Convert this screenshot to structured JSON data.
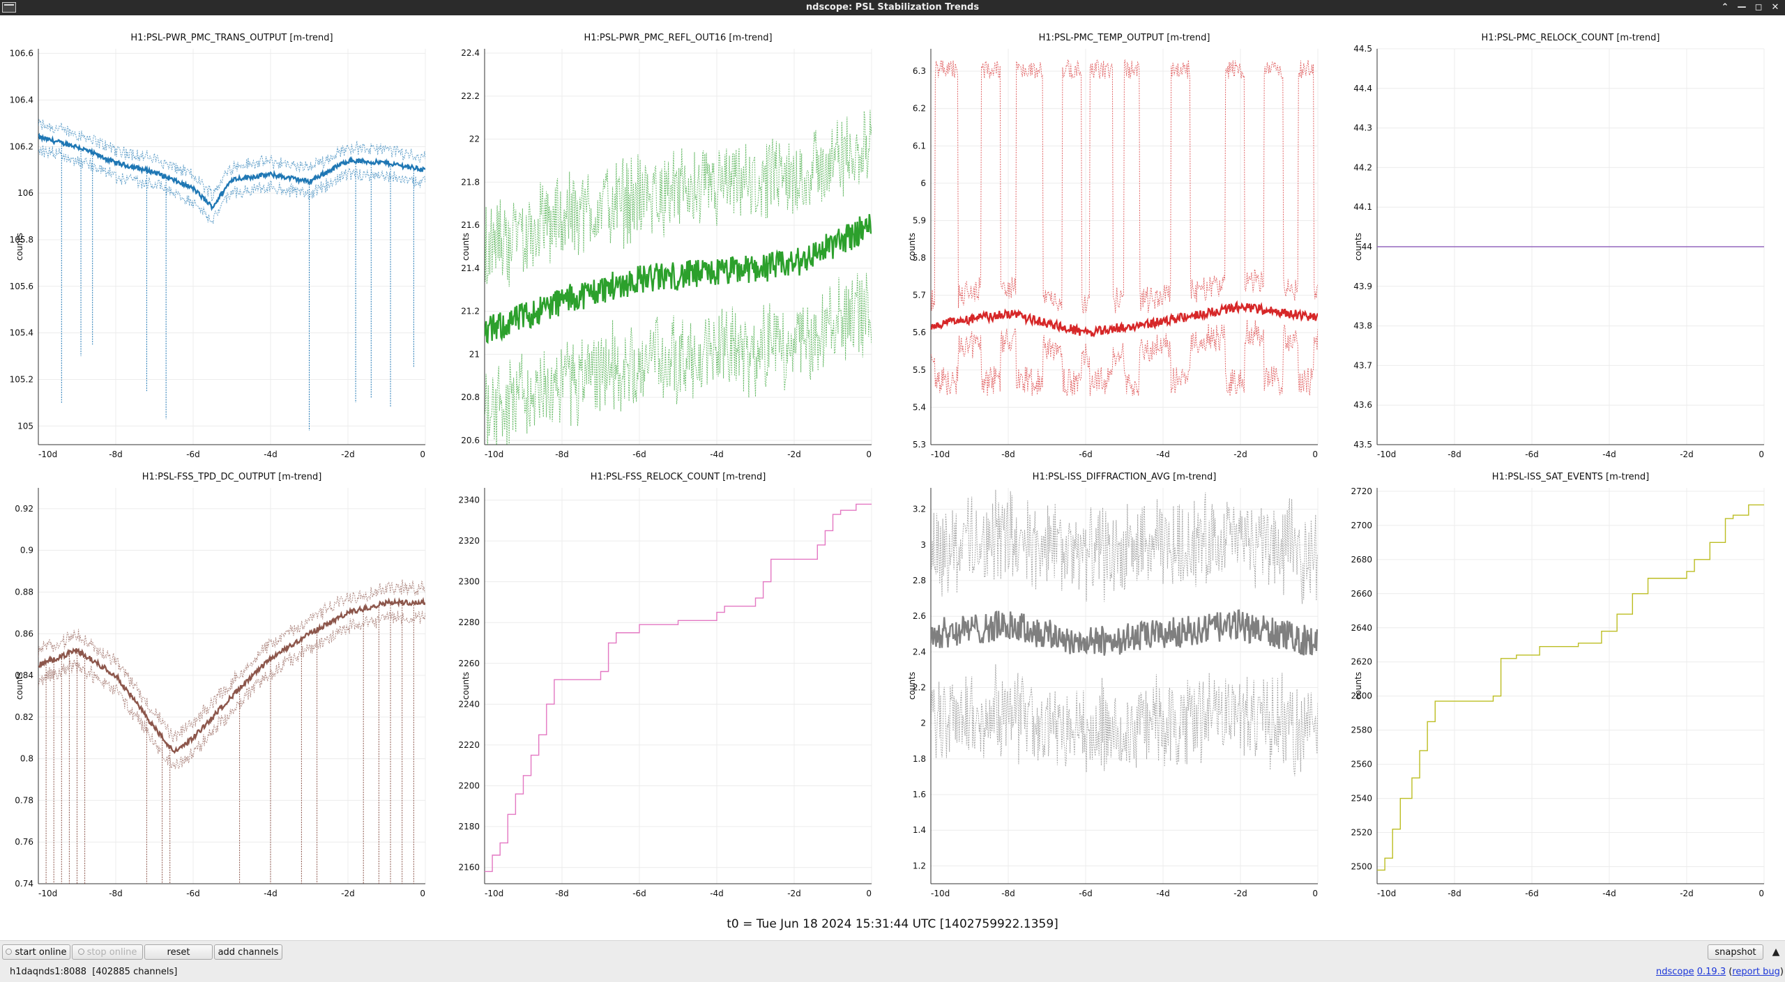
{
  "window": {
    "title": "ndscope: PSL Stabilization Trends"
  },
  "t0_label": "t0 = Tue Jun 18 2024 15:31:44 UTC [1402759922.1359]",
  "buttons": {
    "start_online": "start online",
    "stop_online": "stop online",
    "reset": "reset",
    "add_channels": "add channels",
    "snapshot": "snapshot"
  },
  "status": {
    "server": "h1daqnds1:8088",
    "channels": "[402885 channels]",
    "app_name": "ndscope",
    "version": "0.19.3",
    "report_bug": "report bug"
  },
  "colors": {
    "blue": "#1f77b4",
    "green": "#2ca02c",
    "red": "#d62728",
    "purple": "#9467bd",
    "brown": "#8c564b",
    "pink": "#e377c2",
    "gray": "#7f7f7f",
    "olive": "#bcbd22"
  },
  "chart_data": [
    {
      "type": "line",
      "title": "H1:PSL-PWR_PMC_TRANS_OUTPUT [m-trend]",
      "ylabel": "counts",
      "color": "blue",
      "xlim": [
        -10,
        0
      ],
      "x_ticks": [
        "-10d",
        "-8d",
        "-6d",
        "-4d",
        "-2d",
        "0"
      ],
      "ylim": [
        104.92,
        106.62
      ],
      "y_ticks": [
        105,
        105.2,
        105.4,
        105.6,
        105.8,
        106,
        106.2,
        106.4,
        106.6
      ],
      "x": [
        -10,
        -9,
        -8,
        -7,
        -6,
        -5.5,
        -5,
        -4,
        -3,
        -2,
        -1,
        0
      ],
      "mean": [
        106.24,
        106.2,
        106.13,
        106.09,
        106.02,
        105.94,
        106.06,
        106.08,
        106.05,
        106.14,
        106.13,
        106.1
      ],
      "band": 0.08,
      "dips": [
        [
          -9.4,
          105.1
        ],
        [
          -8.9,
          105.3
        ],
        [
          -8.6,
          105.35
        ],
        [
          -7.2,
          105.15
        ],
        [
          -6.7,
          105.03
        ],
        [
          -3,
          104.98
        ],
        [
          -1.8,
          105.1
        ],
        [
          -1.4,
          105.12
        ],
        [
          -0.9,
          105.08
        ],
        [
          -0.3,
          105.25
        ]
      ]
    },
    {
      "type": "line",
      "title": "H1:PSL-PWR_PMC_REFL_OUT16 [m-trend]",
      "ylabel": "counts",
      "color": "green",
      "xlim": [
        -10,
        0
      ],
      "x_ticks": [
        "-10d",
        "-8d",
        "-6d",
        "-4d",
        "-2d",
        "0"
      ],
      "ylim": [
        20.58,
        22.42
      ],
      "y_ticks": [
        20.6,
        20.8,
        21,
        21.2,
        21.4,
        21.6,
        21.8,
        22,
        22.2,
        22.4
      ],
      "x": [
        -10,
        -8,
        -6,
        -4,
        -2,
        0
      ],
      "mean": [
        21.1,
        21.25,
        21.35,
        21.38,
        21.42,
        21.6
      ],
      "band": 0.55,
      "dips": []
    },
    {
      "type": "line",
      "title": "H1:PSL-PMC_TEMP_OUTPUT [m-trend]",
      "ylabel": "counts",
      "color": "red",
      "xlim": [
        -10,
        0
      ],
      "x_ticks": [
        "-10d",
        "-8d",
        "-6d",
        "-4d",
        "-2d",
        "0"
      ],
      "ylim": [
        5.3,
        6.36
      ],
      "y_ticks": [
        5.3,
        5.4,
        5.5,
        5.6,
        5.7,
        5.8,
        5.9,
        6,
        6.1,
        6.2,
        6.3
      ],
      "x": [
        -10,
        -8,
        -6,
        -4,
        -2,
        0
      ],
      "mean": [
        5.62,
        5.65,
        5.6,
        5.63,
        5.67,
        5.64
      ],
      "band": 0.1,
      "bursts": [
        [
          -9.9,
          -9.3
        ],
        [
          -8.7,
          -8.2
        ],
        [
          -7.8,
          -7.1
        ],
        [
          -6.6,
          -6.1
        ],
        [
          -5.9,
          -5.3
        ],
        [
          -5.0,
          -4.6
        ],
        [
          -3.8,
          -3.3
        ],
        [
          -2.4,
          -1.9
        ],
        [
          -1.4,
          -0.9
        ],
        [
          -0.5,
          -0.1
        ]
      ],
      "burst_top": 6.33,
      "burst_bottom": 5.43,
      "dips": []
    },
    {
      "type": "line",
      "title": "H1:PSL-PMC_RELOCK_COUNT [m-trend]",
      "ylabel": "counts",
      "color": "purple",
      "xlim": [
        -10,
        0
      ],
      "x_ticks": [
        "-10d",
        "-8d",
        "-6d",
        "-4d",
        "-2d",
        "0"
      ],
      "ylim": [
        43.5,
        44.5
      ],
      "y_ticks": [
        43.5,
        43.6,
        43.7,
        43.8,
        43.9,
        44,
        44.1,
        44.2,
        44.3,
        44.4,
        44.5
      ],
      "x": [
        -10,
        0
      ],
      "values": [
        44,
        44
      ]
    },
    {
      "type": "line",
      "title": "H1:PSL-FSS_TPD_DC_OUTPUT [m-trend]",
      "ylabel": "counts",
      "color": "brown",
      "xlim": [
        -10,
        0
      ],
      "x_ticks": [
        "-10d",
        "-8d",
        "-6d",
        "-4d",
        "-2d",
        "0"
      ],
      "ylim": [
        0.74,
        0.93
      ],
      "y_ticks": [
        0.74,
        0.76,
        0.78,
        0.8,
        0.82,
        0.84,
        0.86,
        0.88,
        0.9,
        0.92
      ],
      "x": [
        -10,
        -9,
        -8,
        -7,
        -6.5,
        -6,
        -5,
        -4,
        -3,
        -2,
        -1,
        0
      ],
      "mean": [
        0.845,
        0.852,
        0.84,
        0.815,
        0.803,
        0.81,
        0.83,
        0.848,
        0.86,
        0.87,
        0.875,
        0.875
      ],
      "band": 0.01,
      "dips": [
        [
          -9.8,
          0.74
        ],
        [
          -9.6,
          0.74
        ],
        [
          -9.4,
          0.74
        ],
        [
          -9.2,
          0.74
        ],
        [
          -9.0,
          0.74
        ],
        [
          -8.8,
          0.74
        ],
        [
          -7.2,
          0.74
        ],
        [
          -6.8,
          0.74
        ],
        [
          -6.6,
          0.74
        ],
        [
          -4.8,
          0.74
        ],
        [
          -4.0,
          0.74
        ],
        [
          -3.2,
          0.74
        ],
        [
          -2.8,
          0.74
        ],
        [
          -1.6,
          0.74
        ],
        [
          -1.2,
          0.74
        ],
        [
          -0.9,
          0.74
        ],
        [
          -0.6,
          0.74
        ],
        [
          -0.3,
          0.74
        ]
      ]
    },
    {
      "type": "line",
      "step": true,
      "title": "H1:PSL-FSS_RELOCK_COUNT [m-trend]",
      "ylabel": "counts",
      "color": "pink",
      "xlim": [
        -10,
        0
      ],
      "x_ticks": [
        "-10d",
        "-8d",
        "-6d",
        "-4d",
        "-2d",
        "0"
      ],
      "ylim": [
        2152,
        2346
      ],
      "y_ticks": [
        2160,
        2180,
        2200,
        2220,
        2240,
        2260,
        2280,
        2300,
        2320,
        2340
      ],
      "x": [
        -10,
        -9.8,
        -9.6,
        -9.4,
        -9.2,
        -9.0,
        -8.8,
        -8.6,
        -8.4,
        -8.2,
        -7.8,
        -7.4,
        -7.0,
        -6.8,
        -6.6,
        -6.0,
        -5.0,
        -4.0,
        -3.8,
        -3.0,
        -2.8,
        -2.6,
        -2.0,
        -1.4,
        -1.2,
        -1.0,
        -0.8,
        -0.4,
        0
      ],
      "values": [
        2158,
        2166,
        2172,
        2186,
        2196,
        2205,
        2215,
        2225,
        2240,
        2252,
        2252,
        2252,
        2256,
        2270,
        2275,
        2279,
        2281,
        2285,
        2288,
        2292,
        2300,
        2311,
        2311,
        2318,
        2325,
        2333,
        2335,
        2338,
        2338
      ]
    },
    {
      "type": "line",
      "title": "H1:PSL-ISS_DIFFRACTION_AVG [m-trend]",
      "ylabel": "counts",
      "color": "gray",
      "xlim": [
        -10,
        0
      ],
      "x_ticks": [
        "-10d",
        "-8d",
        "-6d",
        "-4d",
        "-2d",
        "0"
      ],
      "ylim": [
        1.1,
        3.32
      ],
      "y_ticks": [
        1.2,
        1.4,
        1.6,
        1.8,
        2,
        2.2,
        2.4,
        2.6,
        2.8,
        3,
        3.2
      ],
      "x": [
        -10,
        -8,
        -6,
        -4,
        -2,
        0
      ],
      "mean": [
        2.5,
        2.55,
        2.45,
        2.5,
        2.55,
        2.45
      ],
      "band": 0.7,
      "dips": []
    },
    {
      "type": "line",
      "step": true,
      "title": "H1:PSL-ISS_SAT_EVENTS [m-trend]",
      "ylabel": "counts",
      "color": "olive",
      "xlim": [
        -10,
        0
      ],
      "x_ticks": [
        "-10d",
        "-8d",
        "-6d",
        "-4d",
        "-2d",
        "0"
      ],
      "ylim": [
        2490,
        2722
      ],
      "y_ticks": [
        2500,
        2520,
        2540,
        2560,
        2580,
        2600,
        2620,
        2640,
        2660,
        2680,
        2700,
        2720
      ],
      "x": [
        -10,
        -9.8,
        -9.6,
        -9.4,
        -9.1,
        -8.9,
        -8.7,
        -8.5,
        -7.6,
        -7.0,
        -6.8,
        -6.4,
        -5.8,
        -4.8,
        -4.2,
        -3.8,
        -3.4,
        -3.0,
        -2.8,
        -2.0,
        -1.8,
        -1.4,
        -1.0,
        -0.8,
        -0.4,
        0
      ],
      "values": [
        2498,
        2505,
        2522,
        2540,
        2552,
        2568,
        2585,
        2597,
        2597,
        2600,
        2622,
        2624,
        2629,
        2631,
        2638,
        2648,
        2660,
        2669,
        2669,
        2673,
        2680,
        2690,
        2704,
        2706,
        2712,
        2712
      ]
    }
  ]
}
